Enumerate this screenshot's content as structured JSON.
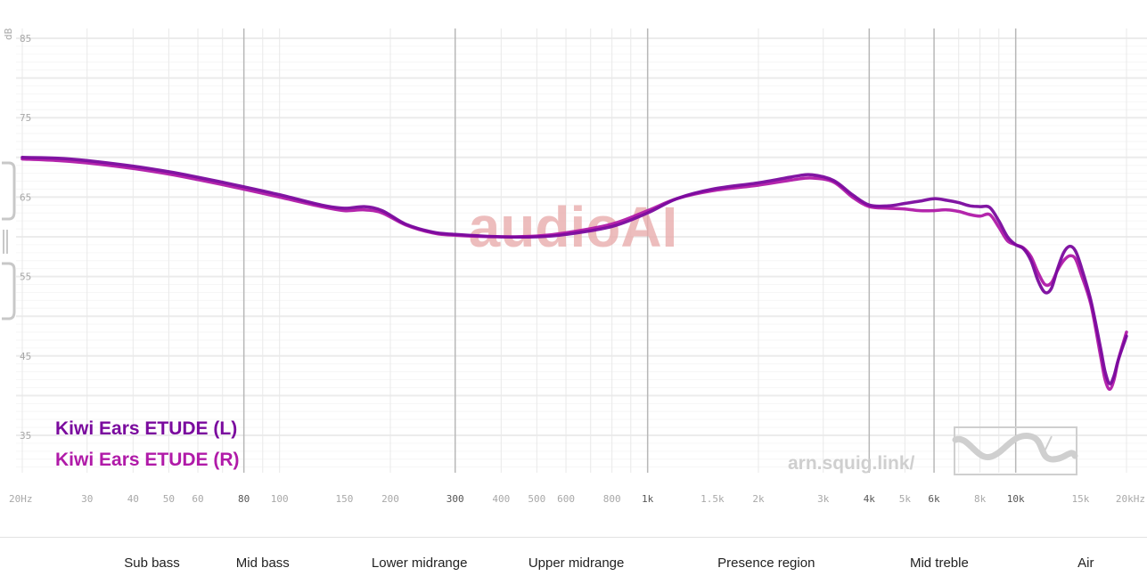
{
  "chart_data": {
    "type": "line",
    "ylabel": "dB",
    "xscale": "log",
    "xlim": [
      20,
      20000
    ],
    "ylim": [
      30,
      87
    ],
    "grid": true,
    "x_ticks": [
      {
        "value": 20,
        "label": "20Hz",
        "major": false
      },
      {
        "value": 30,
        "label": "30",
        "major": false
      },
      {
        "value": 40,
        "label": "40",
        "major": false
      },
      {
        "value": 50,
        "label": "50",
        "major": false
      },
      {
        "value": 60,
        "label": "60",
        "major": false
      },
      {
        "value": 80,
        "label": "80",
        "major": true
      },
      {
        "value": 100,
        "label": "100",
        "major": false
      },
      {
        "value": 150,
        "label": "150",
        "major": false
      },
      {
        "value": 200,
        "label": "200",
        "major": false
      },
      {
        "value": 300,
        "label": "300",
        "major": true
      },
      {
        "value": 400,
        "label": "400",
        "major": false
      },
      {
        "value": 500,
        "label": "500",
        "major": false
      },
      {
        "value": 600,
        "label": "600",
        "major": false
      },
      {
        "value": 800,
        "label": "800",
        "major": false
      },
      {
        "value": 1000,
        "label": "1k",
        "major": true
      },
      {
        "value": 1500,
        "label": "1.5k",
        "major": false
      },
      {
        "value": 2000,
        "label": "2k",
        "major": false
      },
      {
        "value": 3000,
        "label": "3k",
        "major": false
      },
      {
        "value": 4000,
        "label": "4k",
        "major": true
      },
      {
        "value": 5000,
        "label": "5k",
        "major": false
      },
      {
        "value": 6000,
        "label": "6k",
        "major": true
      },
      {
        "value": 8000,
        "label": "8k",
        "major": false
      },
      {
        "value": 10000,
        "label": "10k",
        "major": true
      },
      {
        "value": 15000,
        "label": "15k",
        "major": false
      },
      {
        "value": 20000,
        "label": "20kHz",
        "major": false
      }
    ],
    "y_ticks": [
      {
        "value": 85,
        "label": "85"
      },
      {
        "value": 75,
        "label": "75"
      },
      {
        "value": 65,
        "label": "65"
      },
      {
        "value": 55,
        "label": "55"
      },
      {
        "value": 45,
        "label": "45"
      },
      {
        "value": 35,
        "label": "35"
      }
    ],
    "series": [
      {
        "name": "Kiwi Ears ETUDE (L)",
        "color": "#7a0a9e",
        "points": [
          [
            20,
            70.0
          ],
          [
            25,
            69.9
          ],
          [
            30,
            69.6
          ],
          [
            40,
            68.9
          ],
          [
            50,
            68.2
          ],
          [
            60,
            67.5
          ],
          [
            80,
            66.3
          ],
          [
            100,
            65.3
          ],
          [
            130,
            64.0
          ],
          [
            150,
            63.6
          ],
          [
            170,
            63.8
          ],
          [
            190,
            63.3
          ],
          [
            220,
            61.6
          ],
          [
            260,
            60.6
          ],
          [
            300,
            60.3
          ],
          [
            400,
            60.0
          ],
          [
            500,
            60.0
          ],
          [
            600,
            60.3
          ],
          [
            800,
            61.3
          ],
          [
            1000,
            63.0
          ],
          [
            1200,
            64.8
          ],
          [
            1500,
            66.0
          ],
          [
            2000,
            66.8
          ],
          [
            2500,
            67.6
          ],
          [
            2800,
            67.8
          ],
          [
            3200,
            67.1
          ],
          [
            3600,
            65.3
          ],
          [
            4000,
            64.0
          ],
          [
            4500,
            63.9
          ],
          [
            5000,
            64.2
          ],
          [
            5500,
            64.5
          ],
          [
            6000,
            64.8
          ],
          [
            6500,
            64.6
          ],
          [
            7000,
            64.3
          ],
          [
            7500,
            63.9
          ],
          [
            8000,
            63.8
          ],
          [
            8500,
            63.7
          ],
          [
            9000,
            62.0
          ],
          [
            9500,
            60.0
          ],
          [
            10000,
            59.0
          ],
          [
            10500,
            58.5
          ],
          [
            11000,
            57.0
          ],
          [
            11500,
            54.5
          ],
          [
            12000,
            53.0
          ],
          [
            12500,
            53.5
          ],
          [
            13000,
            56.0
          ],
          [
            13500,
            58.0
          ],
          [
            14000,
            58.8
          ],
          [
            14500,
            58.3
          ],
          [
            15000,
            56.5
          ],
          [
            16000,
            52.0
          ],
          [
            17000,
            46.0
          ],
          [
            17500,
            43.0
          ],
          [
            18000,
            41.5
          ],
          [
            18500,
            42.5
          ],
          [
            19000,
            44.5
          ],
          [
            20000,
            47.5
          ]
        ]
      },
      {
        "name": "Kiwi Ears ETUDE (R)",
        "color": "#b01aa8",
        "points": [
          [
            20,
            69.8
          ],
          [
            25,
            69.6
          ],
          [
            30,
            69.3
          ],
          [
            40,
            68.6
          ],
          [
            50,
            67.9
          ],
          [
            60,
            67.2
          ],
          [
            80,
            66.0
          ],
          [
            100,
            65.0
          ],
          [
            130,
            63.8
          ],
          [
            150,
            63.3
          ],
          [
            170,
            63.4
          ],
          [
            190,
            63.0
          ],
          [
            220,
            61.5
          ],
          [
            260,
            60.5
          ],
          [
            300,
            60.2
          ],
          [
            400,
            60.0
          ],
          [
            500,
            60.1
          ],
          [
            600,
            60.5
          ],
          [
            800,
            61.6
          ],
          [
            1000,
            63.3
          ],
          [
            1200,
            64.8
          ],
          [
            1500,
            65.8
          ],
          [
            2000,
            66.5
          ],
          [
            2500,
            67.2
          ],
          [
            2800,
            67.4
          ],
          [
            3200,
            66.9
          ],
          [
            3600,
            65.0
          ],
          [
            4000,
            63.8
          ],
          [
            4500,
            63.6
          ],
          [
            5000,
            63.5
          ],
          [
            5500,
            63.3
          ],
          [
            6000,
            63.3
          ],
          [
            6500,
            63.4
          ],
          [
            7000,
            63.2
          ],
          [
            7500,
            62.8
          ],
          [
            8000,
            62.6
          ],
          [
            8500,
            62.8
          ],
          [
            9000,
            61.2
          ],
          [
            9500,
            59.5
          ],
          [
            10000,
            59.0
          ],
          [
            10500,
            58.6
          ],
          [
            11000,
            57.5
          ],
          [
            11500,
            55.5
          ],
          [
            12000,
            54.0
          ],
          [
            12500,
            54.2
          ],
          [
            13000,
            55.8
          ],
          [
            13500,
            57.0
          ],
          [
            14000,
            57.6
          ],
          [
            14500,
            57.3
          ],
          [
            15000,
            55.5
          ],
          [
            16000,
            51.5
          ],
          [
            17000,
            45.0
          ],
          [
            17500,
            42.0
          ],
          [
            18000,
            40.8
          ],
          [
            18500,
            42.0
          ],
          [
            19000,
            44.5
          ],
          [
            20000,
            48.0
          ]
        ]
      }
    ]
  },
  "watermark": "audioAI",
  "source": "arn.squig.link/",
  "bands": [
    {
      "label": "Sub bass",
      "freq": 45
    },
    {
      "label": "Mid bass",
      "freq": 90
    },
    {
      "label": "Lower midrange",
      "freq": 240
    },
    {
      "label": "Upper midrange",
      "freq": 640
    },
    {
      "label": "Presence region",
      "freq": 2100
    },
    {
      "label": "Mid treble",
      "freq": 6200
    },
    {
      "label": "Air",
      "freq": 15500
    }
  ]
}
